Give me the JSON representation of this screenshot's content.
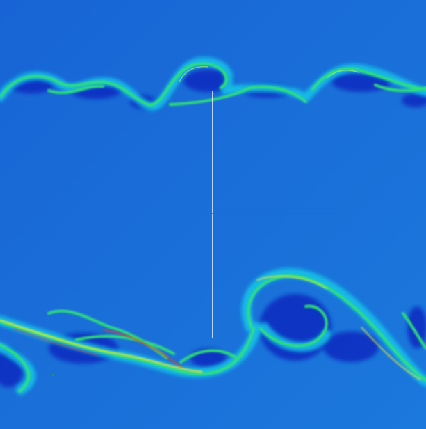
{
  "scene": {
    "subject": "",
    "colormap": "",
    "palette": {
      "background": "#1a6fd8",
      "deep": "#0b2fc4",
      "cyan": "#12c8e8",
      "green": "#2fe07a",
      "yellow": "#d8e83a",
      "red": "#e2401e"
    }
  },
  "overlay": {
    "vertical_probe_color": "#ffffff",
    "horizontal_probe_color": "#c0392b"
  }
}
